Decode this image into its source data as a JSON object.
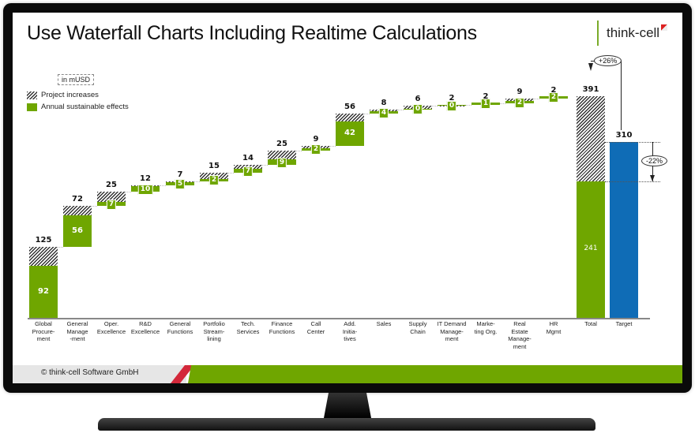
{
  "slide": {
    "title": "Use Waterfall Charts Including Realtime Calculations",
    "brand": "think-cell",
    "footer": "© think-cell Software GmbH"
  },
  "chart_data": {
    "type": "bar",
    "subtype": "waterfall",
    "title": "Use Waterfall Charts Including Realtime Calculations",
    "unit": "in mUSD",
    "legend": [
      "Project increases",
      "Annual sustainable effects"
    ],
    "categories": [
      "Global Procurement",
      "General Management",
      "Oper. Excellence",
      "R&D Excellence",
      "General Functions",
      "Portfolio Streamlining",
      "Tech. Services",
      "Finance Functions",
      "Call Center",
      "Add. Initiatives",
      "Sales",
      "Supply Chain",
      "IT Demand Management",
      "Marketing Org.",
      "Real Estate Management",
      "HR Mgmt",
      "Total",
      "Target"
    ],
    "category_labels": [
      [
        "Global",
        "Procure-",
        "ment"
      ],
      [
        "General",
        "Manage",
        "-ment"
      ],
      [
        "Oper.",
        "Excellence"
      ],
      [
        "R&D",
        "Excellence"
      ],
      [
        "General",
        "Functions"
      ],
      [
        "Portfolio",
        "Stream-",
        "lining"
      ],
      [
        "Tech.",
        "Services"
      ],
      [
        "Finance",
        "Functions"
      ],
      [
        "Call",
        "Center"
      ],
      [
        "Add.",
        "Initia-",
        "tives"
      ],
      [
        "Sales"
      ],
      [
        "Supply",
        "Chain"
      ],
      [
        "IT Demand",
        "Manage-",
        "ment"
      ],
      [
        "Marke-",
        "ting Org."
      ],
      [
        "Real",
        "Estate",
        "Manage-",
        "ment"
      ],
      [
        "HR",
        "Mgmt"
      ],
      [
        "Total"
      ],
      [
        "Target"
      ]
    ],
    "series": [
      {
        "name": "Project increases",
        "values": [
          125,
          72,
          25,
          12,
          7,
          15,
          14,
          25,
          9,
          56,
          8,
          6,
          2,
          2,
          9,
          2,
          391,
          null
        ]
      },
      {
        "name": "Annual sustainable effects",
        "values": [
          92,
          56,
          7,
          10,
          5,
          2,
          7,
          9,
          2,
          42,
          4,
          0,
          0,
          1,
          2,
          2,
          241,
          null
        ]
      },
      {
        "name": "Target",
        "values": [
          null,
          null,
          null,
          null,
          null,
          null,
          null,
          null,
          null,
          null,
          null,
          null,
          null,
          null,
          null,
          null,
          null,
          310
        ]
      }
    ],
    "annotations": [
      {
        "type": "difference",
        "from": "Target",
        "to": "Total",
        "label": "+26%"
      },
      {
        "type": "difference",
        "from": "Target",
        "to": "Total sustainable",
        "label": "-22%"
      }
    ],
    "ylim": [
      0,
      391
    ],
    "grid": false,
    "legend_position": "top-left"
  },
  "colors": {
    "green": "#6fa600",
    "blue": "#0f6cb6",
    "red": "#d3283a",
    "hatch": "#333333"
  }
}
